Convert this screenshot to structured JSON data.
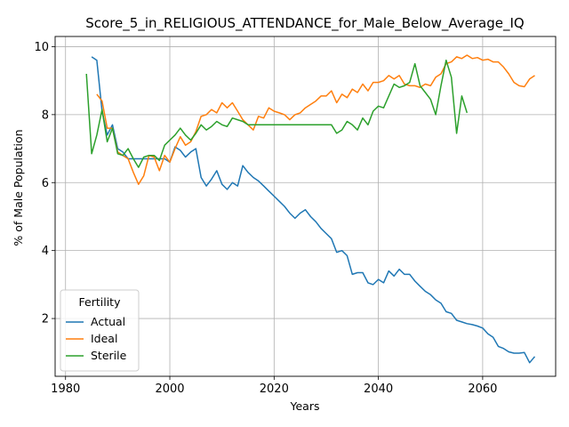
{
  "chart_data": {
    "type": "line",
    "title": "Score_5_in_RELIGIOUS_ATTENDANCE_for_Male_Below_Average_IQ",
    "xlabel": "Years",
    "ylabel": "% of Male Population",
    "xlim": [
      1978,
      2074
    ],
    "ylim": [
      0.3,
      10.3
    ],
    "xticks": [
      1980,
      2000,
      2020,
      2040,
      2060
    ],
    "yticks": [
      2,
      4,
      6,
      8,
      10
    ],
    "grid": true,
    "legend": {
      "title": "Fertility",
      "placement": "lower-left"
    },
    "series": [
      {
        "name": "Actual",
        "color": "#1f77b4",
        "x": [
          1985,
          1986,
          1987,
          1988,
          1989,
          1990,
          1991,
          1992,
          1993,
          1994,
          1995,
          1996,
          1997,
          1998,
          1999,
          2000,
          2001,
          2002,
          2003,
          2004,
          2005,
          2006,
          2007,
          2008,
          2009,
          2010,
          2011,
          2012,
          2013,
          2014,
          2015,
          2016,
          2017,
          2018,
          2019,
          2020,
          2021,
          2022,
          2023,
          2024,
          2025,
          2026,
          2027,
          2028,
          2029,
          2030,
          2031,
          2032,
          2033,
          2034,
          2035,
          2036,
          2037,
          2038,
          2039,
          2040,
          2041,
          2042,
          2043,
          2044,
          2045,
          2046,
          2047,
          2048,
          2049,
          2050,
          2051,
          2052,
          2053,
          2054,
          2055,
          2056,
          2057,
          2058,
          2059,
          2060,
          2061,
          2062,
          2063,
          2064,
          2065,
          2066,
          2067,
          2068,
          2069,
          2070
        ],
        "y": [
          9.7,
          9.6,
          8.1,
          7.4,
          7.7,
          7.0,
          6.9,
          6.7,
          6.7,
          6.7,
          6.7,
          6.7,
          6.7,
          6.7,
          6.7,
          6.6,
          7.05,
          6.95,
          6.75,
          6.9,
          7.0,
          6.15,
          5.9,
          6.1,
          6.35,
          5.95,
          5.8,
          6.0,
          5.9,
          6.5,
          6.3,
          6.15,
          6.05,
          5.9,
          5.75,
          5.6,
          5.45,
          5.3,
          5.1,
          4.95,
          5.1,
          5.2,
          5.0,
          4.85,
          4.65,
          4.5,
          4.35,
          3.95,
          4.0,
          3.85,
          3.3,
          3.35,
          3.35,
          3.05,
          3.0,
          3.15,
          3.05,
          3.4,
          3.25,
          3.45,
          3.3,
          3.3,
          3.1,
          2.95,
          2.8,
          2.7,
          2.55,
          2.45,
          2.2,
          2.15,
          1.95,
          1.9,
          1.85,
          1.82,
          1.78,
          1.72,
          1.55,
          1.45,
          1.18,
          1.12,
          1.02,
          0.98,
          0.98,
          1.0,
          0.7,
          0.88
        ]
      },
      {
        "name": "Ideal",
        "color": "#ff7f0e",
        "x": [
          1986,
          1987,
          1988,
          1989,
          1990,
          1991,
          1992,
          1993,
          1994,
          1995,
          1996,
          1997,
          1998,
          1999,
          2000,
          2001,
          2002,
          2003,
          2004,
          2005,
          2006,
          2007,
          2008,
          2009,
          2010,
          2011,
          2012,
          2013,
          2014,
          2015,
          2016,
          2017,
          2018,
          2019,
          2020,
          2021,
          2022,
          2023,
          2024,
          2025,
          2026,
          2027,
          2028,
          2029,
          2030,
          2031,
          2032,
          2033,
          2034,
          2035,
          2036,
          2037,
          2038,
          2039,
          2040,
          2041,
          2042,
          2043,
          2044,
          2045,
          2046,
          2047,
          2048,
          2049,
          2050,
          2051,
          2052,
          2053,
          2054,
          2055,
          2056,
          2057,
          2058,
          2059,
          2060,
          2061,
          2062,
          2063,
          2064,
          2065,
          2066,
          2067,
          2068,
          2069,
          2070
        ],
        "y": [
          8.6,
          8.4,
          7.6,
          7.6,
          6.9,
          6.8,
          6.7,
          6.3,
          5.95,
          6.2,
          6.8,
          6.75,
          6.35,
          6.8,
          6.6,
          7.0,
          7.35,
          7.1,
          7.2,
          7.5,
          7.95,
          8.0,
          8.15,
          8.05,
          8.35,
          8.2,
          8.35,
          8.1,
          7.85,
          7.7,
          7.55,
          7.95,
          7.9,
          8.2,
          8.1,
          8.05,
          8.0,
          7.85,
          8.0,
          8.05,
          8.2,
          8.3,
          8.4,
          8.55,
          8.55,
          8.7,
          8.35,
          8.6,
          8.5,
          8.75,
          8.65,
          8.9,
          8.7,
          8.95,
          8.95,
          9.0,
          9.15,
          9.05,
          9.15,
          8.9,
          8.85,
          8.85,
          8.8,
          8.9,
          8.85,
          9.1,
          9.2,
          9.5,
          9.55,
          9.7,
          9.65,
          9.75,
          9.65,
          9.68,
          9.6,
          9.63,
          9.55,
          9.55,
          9.4,
          9.2,
          8.95,
          8.85,
          8.82,
          9.05,
          9.15
        ]
      },
      {
        "name": "Sterile",
        "color": "#2ca02c",
        "x": [
          1984,
          1985,
          1986,
          1987,
          1988,
          1989,
          1990,
          1991,
          1992,
          1993,
          1994,
          1995,
          1996,
          1997,
          1998,
          1999,
          2000,
          2001,
          2002,
          2003,
          2004,
          2005,
          2006,
          2007,
          2008,
          2009,
          2010,
          2011,
          2012,
          2013,
          2014,
          2015,
          2016,
          2017,
          2018,
          2019,
          2020,
          2021,
          2022,
          2023,
          2024,
          2025,
          2026,
          2027,
          2028,
          2029,
          2030,
          2031,
          2032,
          2033,
          2034,
          2035,
          2036,
          2037,
          2038,
          2039,
          2040,
          2041,
          2042,
          2043,
          2044,
          2045,
          2046,
          2047,
          2048,
          2049,
          2050,
          2051,
          2052,
          2053,
          2054,
          2055,
          2056,
          2057
        ],
        "y": [
          9.2,
          6.85,
          7.4,
          8.15,
          7.2,
          7.6,
          6.85,
          6.8,
          7.0,
          6.7,
          6.45,
          6.75,
          6.8,
          6.8,
          6.65,
          7.1,
          7.25,
          7.4,
          7.6,
          7.4,
          7.25,
          7.45,
          7.7,
          7.55,
          7.65,
          7.8,
          7.7,
          7.65,
          7.9,
          7.85,
          7.8,
          7.7,
          7.7,
          7.7,
          7.7,
          7.7,
          7.7,
          7.7,
          7.7,
          7.7,
          7.7,
          7.7,
          7.7,
          7.7,
          7.7,
          7.7,
          7.7,
          7.7,
          7.45,
          7.55,
          7.8,
          7.7,
          7.55,
          7.9,
          7.7,
          8.1,
          8.25,
          8.2,
          8.55,
          8.9,
          8.8,
          8.85,
          8.95,
          9.5,
          8.85,
          8.65,
          8.45,
          8.0,
          8.85,
          9.6,
          9.1,
          7.45,
          8.55,
          8.05
        ]
      }
    ]
  }
}
